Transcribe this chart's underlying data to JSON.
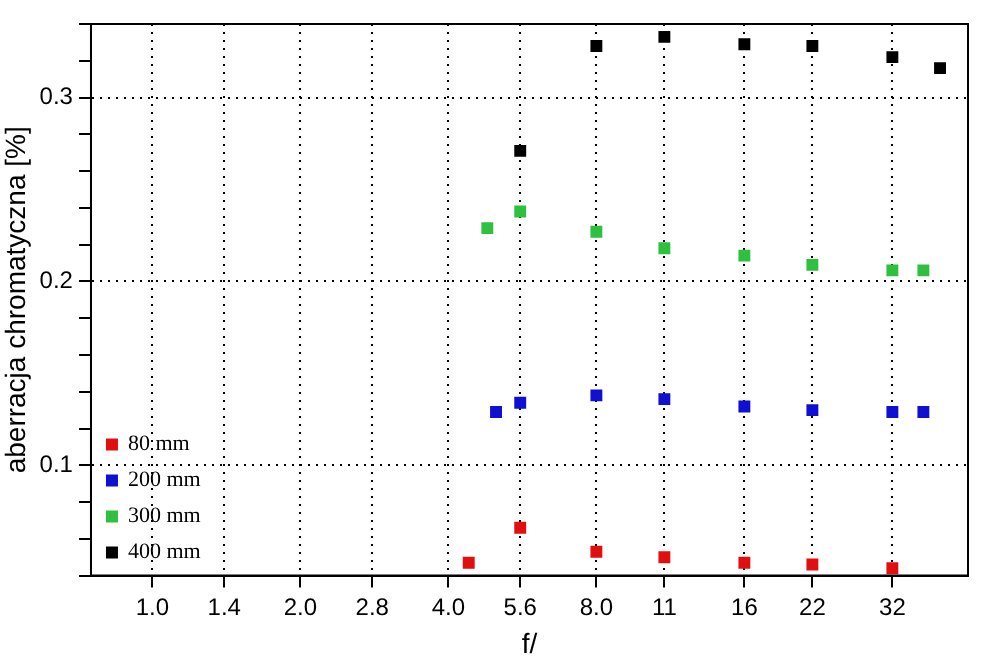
{
  "chart_data": {
    "type": "scatter",
    "xlabel": "f/",
    "ylabel": "aberracja chromatyczna [%]",
    "log": "x",
    "grid": true,
    "legend": "bottom left",
    "marker": "square",
    "xlim": [
      0.75,
      45.6
    ],
    "xticks": [
      {
        "value": 1,
        "label": "1.0"
      },
      1.4,
      {
        "value": 2,
        "label": "2.0"
      },
      2.8,
      {
        "value": 4,
        "label": "4.0"
      },
      5.6,
      {
        "value": 8,
        "label": "8.0"
      },
      11,
      16,
      22,
      32
    ],
    "ylim": [
      0.04,
      0.34
    ],
    "yticks": [
      {
        "value": 0.04,
        "label": null
      },
      {
        "value": 0.06,
        "label": null
      },
      {
        "value": 0.08,
        "label": null
      },
      0.1,
      {
        "value": 0.12,
        "label": null
      },
      {
        "value": 0.14,
        "label": null
      },
      {
        "value": 0.16,
        "label": null
      },
      {
        "value": 0.18,
        "label": null
      },
      0.2,
      {
        "value": 0.22,
        "label": null
      },
      {
        "value": 0.24,
        "label": null
      },
      {
        "value": 0.26,
        "label": null
      },
      {
        "value": 0.28,
        "label": null
      },
      0.3,
      {
        "value": 0.32,
        "label": null
      },
      {
        "value": 0.34,
        "label": null
      }
    ],
    "series": [
      {
        "name": "80 mm",
        "color": "#e01010",
        "x": [
          4.4,
          5.6,
          8,
          11,
          16,
          22,
          32
        ],
        "values": [
          0.047,
          0.066,
          0.053,
          0.05,
          0.047,
          0.046,
          0.044
        ]
      },
      {
        "name": "200 mm",
        "color": "#1010d0",
        "x": [
          5.0,
          5.6,
          8,
          11,
          16,
          22,
          32,
          37
        ],
        "values": [
          0.129,
          0.134,
          0.138,
          0.136,
          0.132,
          0.13,
          0.129,
          0.129
        ]
      },
      {
        "name": "300 mm",
        "color": "#30c040",
        "x": [
          4.8,
          5.6,
          8,
          11,
          16,
          22,
          32,
          37
        ],
        "values": [
          0.229,
          0.238,
          0.227,
          0.218,
          0.214,
          0.209,
          0.206,
          0.206
        ]
      },
      {
        "name": "400 mm",
        "color": "#000000",
        "x": [
          5.6,
          8,
          11,
          16,
          22,
          32,
          40
        ],
        "values": [
          0.271,
          0.328,
          0.333,
          0.329,
          0.328,
          0.322,
          0.316
        ]
      }
    ]
  }
}
